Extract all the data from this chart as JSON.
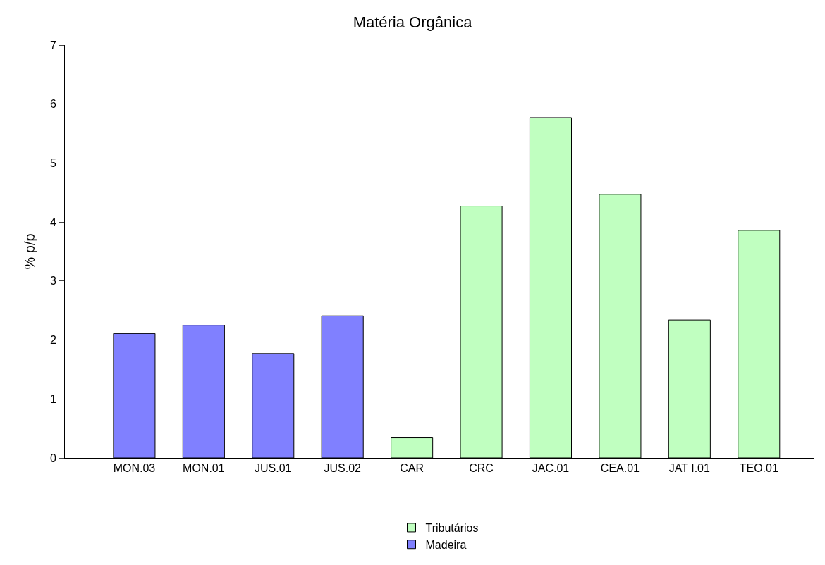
{
  "chart_data": {
    "type": "bar",
    "title": "Matéria Orgânica",
    "ylabel": "% p/p",
    "categories": [
      "MON.03",
      "MON.01",
      "JUS.01",
      "JUS.02",
      "CAR",
      "CRC",
      "JAC.01",
      "CEA.01",
      "JAT I.01",
      "TEO.01"
    ],
    "series": [
      {
        "name": "Tributários",
        "color": "#c0ffc0",
        "values": [
          null,
          null,
          null,
          null,
          0.34,
          4.27,
          5.77,
          4.47,
          2.34,
          3.86
        ]
      },
      {
        "name": "Madeira",
        "color": "#8080ff",
        "values": [
          2.11,
          2.25,
          1.77,
          2.41,
          null,
          null,
          null,
          null,
          null,
          null
        ]
      }
    ],
    "ylim": [
      0,
      7
    ],
    "yticks": [
      0,
      1,
      2,
      3,
      4,
      5,
      6,
      7
    ],
    "legend": "bottom"
  }
}
